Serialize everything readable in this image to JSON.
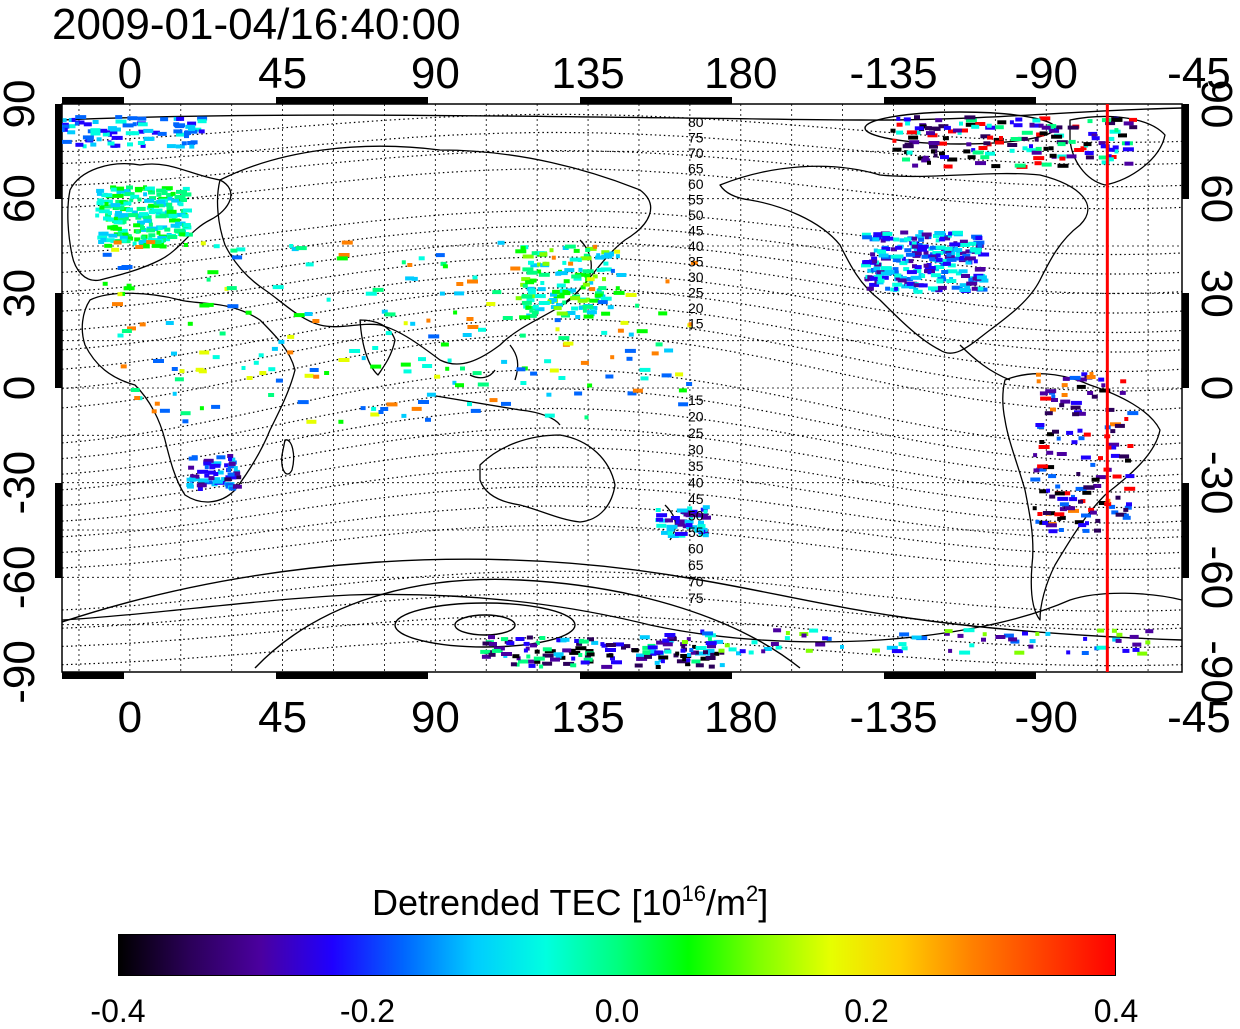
{
  "title": "2009-01-04/16:40:00",
  "map": {
    "top_longitude_ticks": [
      "0",
      "45",
      "90",
      "135",
      "180",
      "-135",
      "-90",
      "-45"
    ],
    "bottom_longitude_ticks": [
      "0",
      "45",
      "90",
      "135",
      "180",
      "-135",
      "-90",
      "-45"
    ],
    "left_latitude_ticks": [
      "90",
      "60",
      "30",
      "0",
      "-30",
      "-60",
      "-90"
    ],
    "right_latitude_ticks": [
      "90",
      "60",
      "30",
      "0",
      "-30",
      "-60",
      "-90"
    ],
    "longitude_range": [
      -20,
      310
    ],
    "latitude_range": [
      -90,
      90
    ],
    "meridian_marker_longitude": -72,
    "meridian_marker_color": "#ff0000",
    "contour_labels_north": [
      "80",
      "75",
      "70",
      "65",
      "60",
      "55",
      "50",
      "45",
      "40",
      "35",
      "30",
      "25",
      "20",
      "15"
    ],
    "contour_labels_south": [
      "15",
      "20",
      "25",
      "30",
      "35",
      "40",
      "45",
      "50",
      "55",
      "60",
      "65",
      "70",
      "75"
    ],
    "graticule": "dotted, every 15 degrees"
  },
  "colorbar": {
    "title_text": "Detrended TEC  [10",
    "title_exponent": "16",
    "title_unit": "/m",
    "title_unit_exponent": "2",
    "title_close": "]",
    "ticks": [
      "-0.4",
      "-0.2",
      "0.0",
      "0.2",
      "0.4"
    ],
    "range": [
      -0.4,
      0.4
    ],
    "colors": [
      "#000000",
      "#2b0059",
      "#4b00a0",
      "#1f00ff",
      "#0066ff",
      "#00ccff",
      "#00ffe0",
      "#00ff80",
      "#00ff00",
      "#80ff00",
      "#e6ff00",
      "#ffcc00",
      "#ff8000",
      "#ff4000",
      "#ff0000"
    ]
  }
}
